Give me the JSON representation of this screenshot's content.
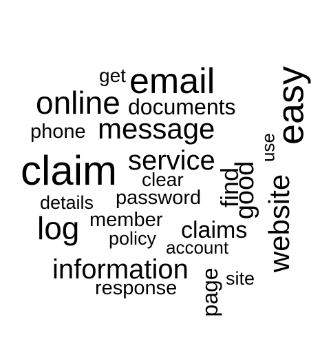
{
  "words": {
    "get": "get",
    "email": "email",
    "online": "online",
    "documents": "documents",
    "phone": "phone",
    "message": "message",
    "easy": "easy",
    "use": "use",
    "service": "service",
    "claim": "claim",
    "clear": "clear",
    "find": "find",
    "good": "good",
    "website": "website",
    "details": "details",
    "password": "password",
    "log": "log",
    "member": "member",
    "claims": "claims",
    "policy": "policy",
    "account": "account",
    "information": "information",
    "page": "page",
    "site": "site",
    "response": "response"
  },
  "colors": {
    "text": "#000000",
    "background": "#ffffff"
  }
}
